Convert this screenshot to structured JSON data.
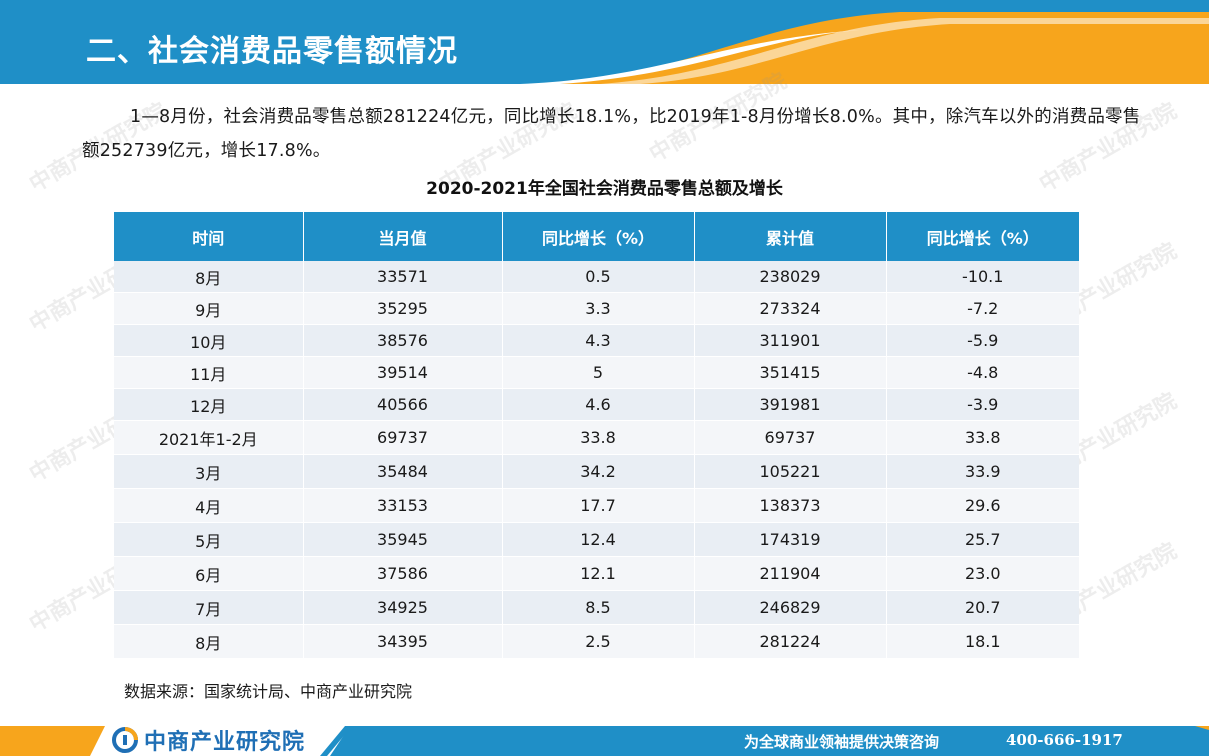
{
  "header": {
    "title": "二、社会消费品零售额情况",
    "colors": {
      "blue": "#1f8fc7",
      "orange": "#f7a51c"
    }
  },
  "intro": "1—8月份，社会消费品零售总额281224亿元，同比增长18.1%，比2019年1-8月份增长8.0%。其中，除汽车以外的消费品零售额252739亿元，增长17.8%。",
  "table": {
    "title": "2020-2021年全国社会消费品零售总额及增长",
    "headers": [
      "时间",
      "当月值",
      "同比增长（%）",
      "累计值",
      "同比增长（%）"
    ],
    "rows": [
      [
        "8月",
        "33571",
        "0.5",
        "238029",
        "-10.1"
      ],
      [
        "9月",
        "35295",
        "3.3",
        "273324",
        "-7.2"
      ],
      [
        "10月",
        "38576",
        "4.3",
        "311901",
        "-5.9"
      ],
      [
        "11月",
        "39514",
        "5",
        "351415",
        "-4.8"
      ],
      [
        "12月",
        "40566",
        "4.6",
        "391981",
        "-3.9"
      ],
      [
        "2021年1-2月",
        "69737",
        "33.8",
        "69737",
        "33.8"
      ],
      [
        "3月",
        "35484",
        "34.2",
        "105221",
        "33.9"
      ],
      [
        "4月",
        "33153",
        "17.7",
        "138373",
        "29.6"
      ],
      [
        "5月",
        "35945",
        "12.4",
        "174319",
        "25.7"
      ],
      [
        "6月",
        "37586",
        "12.1",
        "211904",
        "23.0"
      ],
      [
        "7月",
        "34925",
        "8.5",
        "246829",
        "20.7"
      ],
      [
        "8月",
        "34395",
        "2.5",
        "281224",
        "18.1"
      ]
    ],
    "source": "数据来源：国家统计局、中商产业研究院"
  },
  "watermark": "中商产业研究院",
  "footer": {
    "logo_icon": "askci-logo-icon",
    "logo_text": "中商产业研究院",
    "slogan": "为全球商业领袖提供决策咨询",
    "phone": "400-666-1917"
  }
}
